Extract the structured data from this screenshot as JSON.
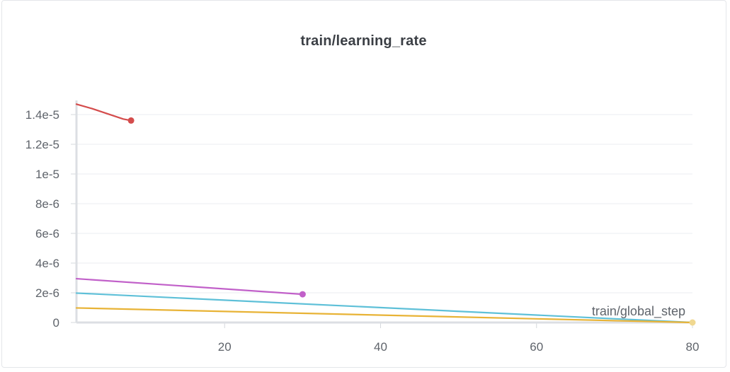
{
  "chart_data": {
    "type": "line",
    "title": "train/learning_rate",
    "xlabel": "train/global_step",
    "ylabel": "",
    "xlim": [
      1,
      80
    ],
    "ylim": [
      0,
      1.45e-05
    ],
    "x_ticks": [
      20,
      40,
      60,
      80
    ],
    "x_tick_labels": [
      "20",
      "40",
      "60",
      "80"
    ],
    "y_ticks": [
      0,
      2e-06,
      4e-06,
      6e-06,
      8e-06,
      1e-05,
      1.2e-05,
      1.4e-05
    ],
    "y_tick_labels": [
      "0",
      "2e-6",
      "4e-6",
      "6e-6",
      "8e-6",
      "1e-5",
      "1.2e-5",
      "1.4e-5"
    ],
    "grid": true,
    "legend": "none",
    "series": [
      {
        "color": "#d44c4c",
        "end_marker": true,
        "points": [
          [
            1,
            1.47e-05
          ],
          [
            3,
            1.44e-05
          ],
          [
            5,
            1.405e-05
          ],
          [
            7,
            1.37e-05
          ],
          [
            8,
            1.36e-05
          ]
        ]
      },
      {
        "color": "#c160c9",
        "end_marker": true,
        "points": [
          [
            1,
            2.95e-06
          ],
          [
            30,
            1.9e-06
          ]
        ]
      },
      {
        "color": "#5ec0d8",
        "end_marker": false,
        "points": [
          [
            1,
            1.98e-06
          ],
          [
            80,
            0
          ]
        ]
      },
      {
        "color": "#e8b336",
        "end_marker": true,
        "end_marker_color": "#f0d890",
        "points": [
          [
            1,
            9.8e-07
          ],
          [
            80,
            0
          ]
        ]
      }
    ]
  }
}
